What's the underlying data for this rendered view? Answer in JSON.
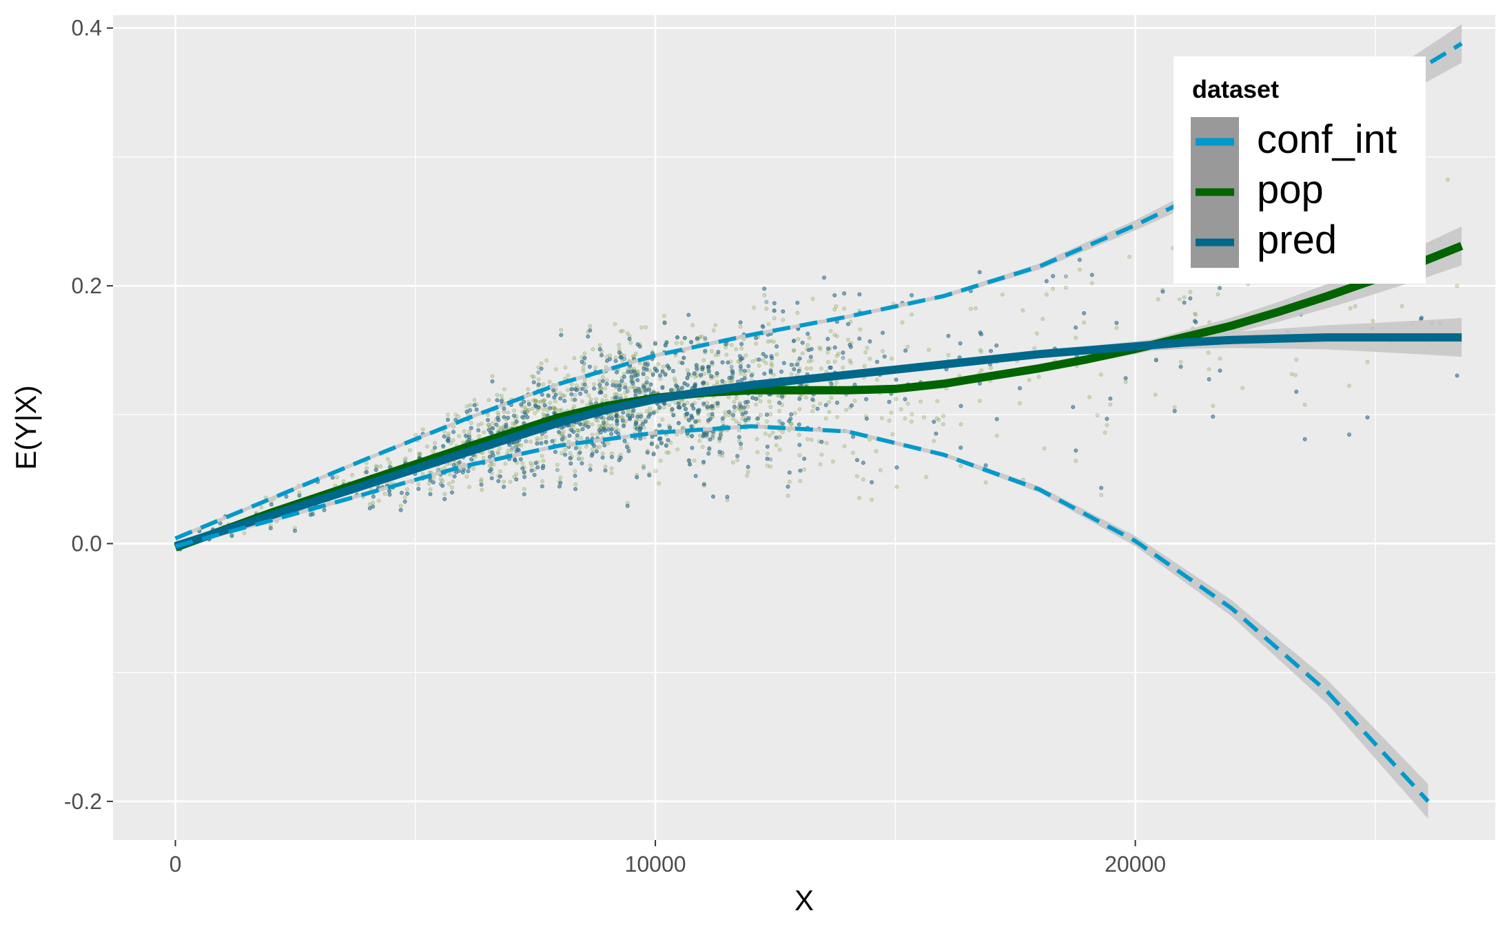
{
  "chart_data": {
    "type": "scatter",
    "title": "",
    "xlabel": "X",
    "ylabel": "E(Y|X)",
    "xlim": [
      -1300,
      27500
    ],
    "ylim": [
      -0.23,
      0.41
    ],
    "x_ticks": [
      0,
      10000,
      20000
    ],
    "x_tick_labels": [
      "0",
      "10000",
      "20000"
    ],
    "y_ticks": [
      -0.2,
      0.0,
      0.2,
      0.4
    ],
    "y_tick_labels": [
      "-0.2",
      "0.0",
      "0.2",
      "0.4"
    ],
    "grid": true,
    "background": "#EBEBEB",
    "legend": {
      "title": "dataset",
      "position": "top-right",
      "entries": [
        "conf_int",
        "pop",
        "pred"
      ]
    },
    "colors": {
      "conf_int": "#0099CC",
      "pop": "#006400",
      "pred": "#00688B",
      "ribbon": "#C8C8C8",
      "points_pop": "#6B8E23",
      "points_pred": "#2E6E8E"
    },
    "series": [
      {
        "name": "pop",
        "style": "solid",
        "x": [
          0,
          2000,
          4000,
          6000,
          8000,
          9000,
          10000,
          11000,
          12000,
          13000,
          14000,
          15000,
          16000,
          17000,
          18000,
          19000,
          20000,
          21000,
          22000,
          23000,
          24000,
          25000,
          26000,
          26800
        ],
        "y": [
          -0.003,
          0.024,
          0.049,
          0.074,
          0.098,
          0.107,
          0.113,
          0.117,
          0.119,
          0.119,
          0.119,
          0.12,
          0.124,
          0.13,
          0.136,
          0.143,
          0.151,
          0.16,
          0.169,
          0.18,
          0.192,
          0.205,
          0.219,
          0.231
        ]
      },
      {
        "name": "pred",
        "style": "solid",
        "x": [
          0,
          2000,
          4000,
          6000,
          8000,
          9000,
          10000,
          11000,
          12000,
          13000,
          14000,
          15000,
          16000,
          17000,
          18000,
          19000,
          20000,
          21000,
          22000,
          23000,
          24000,
          25000,
          26000,
          26800
        ],
        "y": [
          -0.002,
          0.022,
          0.046,
          0.07,
          0.094,
          0.104,
          0.112,
          0.118,
          0.123,
          0.127,
          0.131,
          0.135,
          0.139,
          0.143,
          0.147,
          0.15,
          0.153,
          0.156,
          0.158,
          0.159,
          0.16,
          0.16,
          0.16,
          0.16
        ]
      },
      {
        "name": "conf_int",
        "style": "dashed",
        "x": [
          0,
          2000,
          4000,
          6000,
          8000,
          10000,
          12000,
          14000,
          16000,
          18000,
          20000,
          22000,
          24000,
          26000,
          26800
        ],
        "y": [
          0.004,
          0.035,
          0.066,
          0.096,
          0.124,
          0.146,
          0.162,
          0.176,
          0.192,
          0.215,
          0.247,
          0.283,
          0.325,
          0.37,
          0.388
        ]
      },
      {
        "name": "conf_int",
        "style": "dashed",
        "x": [
          0,
          2000,
          4000,
          6000,
          8000,
          10000,
          12000,
          14000,
          16000,
          18000,
          20000,
          22000,
          24000,
          26100
        ],
        "y": [
          -0.002,
          0.018,
          0.039,
          0.06,
          0.076,
          0.086,
          0.091,
          0.087,
          0.069,
          0.042,
          0.002,
          -0.05,
          -0.115,
          -0.2
        ]
      }
    ]
  }
}
